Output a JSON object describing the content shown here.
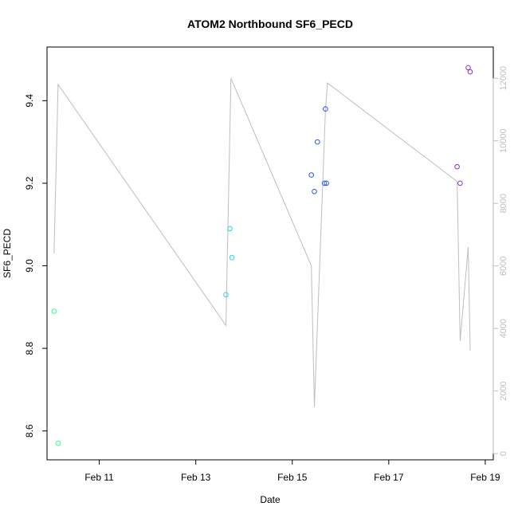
{
  "chart_data": {
    "type": "scatter",
    "title": "ATOM2 Northbound SF6_PECD",
    "xlabel": "Date",
    "ylabel": "SF6_PECD",
    "x_axis": {
      "type": "date",
      "range": [
        "2024-02-09 22:00",
        "2024-02-19 04:00"
      ],
      "ticks": [
        {
          "value": "2024-02-11",
          "label": "Feb 11"
        },
        {
          "value": "2024-02-13",
          "label": "Feb 13"
        },
        {
          "value": "2024-02-15",
          "label": "Feb 15"
        },
        {
          "value": "2024-02-17",
          "label": "Feb 17"
        },
        {
          "value": "2024-02-19",
          "label": "Feb 19"
        }
      ]
    },
    "y_axis_left": {
      "range": [
        8.53,
        9.53
      ],
      "ticks": [
        8.6,
        8.8,
        9.0,
        9.2,
        9.4
      ]
    },
    "y_axis_right": {
      "range": [
        -200,
        13000
      ],
      "ticks": [
        0,
        2000,
        4000,
        6000,
        8000,
        10000,
        12000
      ],
      "color": "#bebebe"
    },
    "grid": false,
    "series": [
      {
        "axis": "left",
        "marker": "open-circle",
        "points": [
          {
            "x": "2024-02-10 01:30",
            "y": 8.89,
            "color": "#2fffa0"
          },
          {
            "x": "2024-02-10 03:30",
            "y": 8.57,
            "color": "#2fffa0"
          },
          {
            "x": "2024-02-13 15:00",
            "y": 8.93,
            "color": "#1fd8e8"
          },
          {
            "x": "2024-02-13 17:00",
            "y": 9.09,
            "color": "#1fd8e8"
          },
          {
            "x": "2024-02-13 18:00",
            "y": 9.02,
            "color": "#1fd8e8"
          },
          {
            "x": "2024-02-15 09:30",
            "y": 9.22,
            "color": "#2a55f0"
          },
          {
            "x": "2024-02-15 11:00",
            "y": 9.18,
            "color": "#2a55f0"
          },
          {
            "x": "2024-02-15 12:30",
            "y": 9.3,
            "color": "#2a55f0"
          },
          {
            "x": "2024-02-15 16:00",
            "y": 9.2,
            "color": "#2a55f0"
          },
          {
            "x": "2024-02-15 16:30",
            "y": 9.38,
            "color": "#2a55f0"
          },
          {
            "x": "2024-02-15 17:00",
            "y": 9.2,
            "color": "#2a55f0"
          },
          {
            "x": "2024-02-18 10:00",
            "y": 9.24,
            "color": "#8a2be2"
          },
          {
            "x": "2024-02-18 11:30",
            "y": 9.2,
            "color": "#8a2be2"
          },
          {
            "x": "2024-02-18 15:30",
            "y": 9.48,
            "color": "#8a2be2"
          },
          {
            "x": "2024-02-18 16:30",
            "y": 9.47,
            "color": "#8a2be2"
          }
        ]
      },
      {
        "axis": "right",
        "type": "line",
        "color": "#bebebe",
        "points": [
          {
            "x": "2024-02-10 01:30",
            "y": 6400
          },
          {
            "x": "2024-02-10 03:30",
            "y": 11800
          },
          {
            "x": "2024-02-13 15:00",
            "y": 4100
          },
          {
            "x": "2024-02-13 17:30",
            "y": 12000
          },
          {
            "x": "2024-02-15 09:30",
            "y": 6000
          },
          {
            "x": "2024-02-15 11:00",
            "y": 1500
          },
          {
            "x": "2024-02-15 16:30",
            "y": 11000
          },
          {
            "x": "2024-02-15 17:30",
            "y": 11850
          },
          {
            "x": "2024-02-18 10:00",
            "y": 8700
          },
          {
            "x": "2024-02-18 11:30",
            "y": 3600
          },
          {
            "x": "2024-02-18 15:30",
            "y": 6600
          },
          {
            "x": "2024-02-18 16:30",
            "y": 3300
          }
        ]
      }
    ]
  }
}
